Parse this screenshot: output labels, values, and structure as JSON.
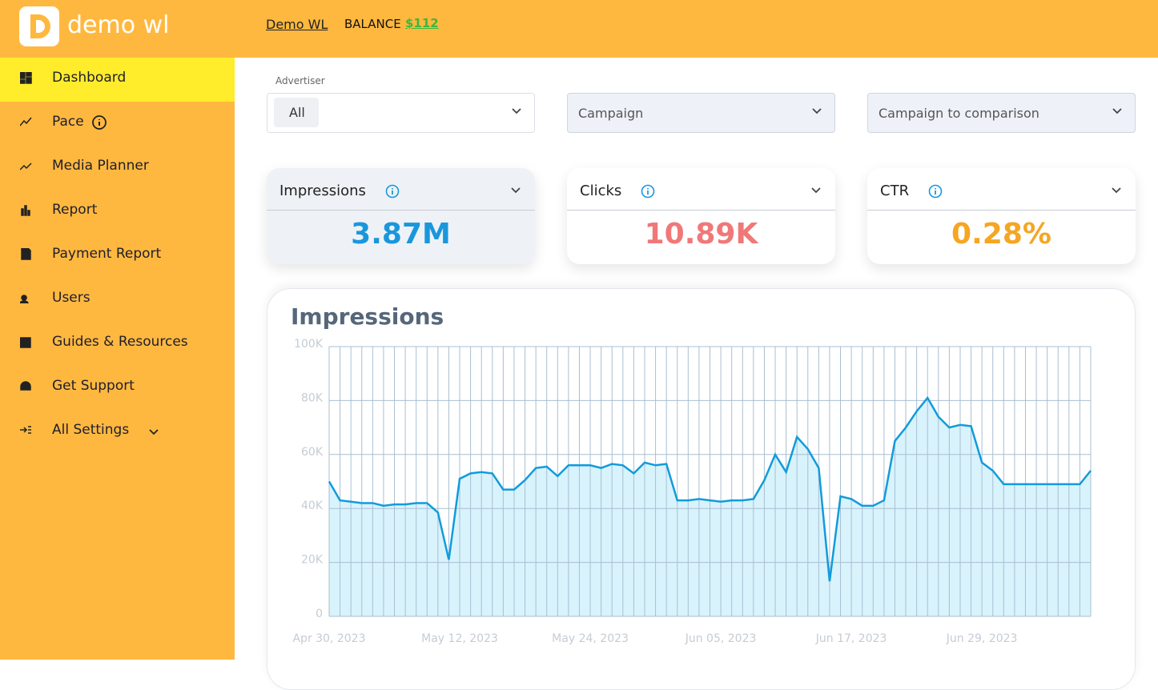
{
  "header": {
    "brand": "demo wl",
    "account": "Demo WL",
    "balance_label": "BALANCE",
    "balance": "$112"
  },
  "sidebar": {
    "items": [
      "Dashboard",
      "Pace",
      "Media Planner",
      "Report",
      "Payment Report",
      "Users",
      "Guides & Resources",
      "Get Support",
      "All Settings"
    ],
    "active": 0
  },
  "filters": {
    "advertiser_label": "Advertiser",
    "advertiser_value": "All",
    "campaign": "Campaign",
    "comparison": "Campaign to comparison"
  },
  "kpis": [
    {
      "name": "Impressions",
      "value": "3.87M",
      "color": "#1a97dc"
    },
    {
      "name": "Clicks",
      "value": "10.89K",
      "color": "#f07878"
    },
    {
      "name": "CTR",
      "value": "0.28%",
      "color": "#f5a623"
    }
  ],
  "chart_data": {
    "type": "area",
    "title": "Impressions",
    "color": "#129bdc",
    "fill": "#d8f3fc",
    "grid": true,
    "x": [
      "2023-04-30",
      "2023-05-01",
      "2023-05-02",
      "2023-05-03",
      "2023-05-04",
      "2023-05-05",
      "2023-05-06",
      "2023-05-07",
      "2023-05-08",
      "2023-05-09",
      "2023-05-10",
      "2023-05-11",
      "2023-05-12",
      "2023-05-13",
      "2023-05-14",
      "2023-05-15",
      "2023-05-16",
      "2023-05-17",
      "2023-05-18",
      "2023-05-19",
      "2023-05-20",
      "2023-05-21",
      "2023-05-22",
      "2023-05-23",
      "2023-05-24",
      "2023-05-25",
      "2023-05-26",
      "2023-05-27",
      "2023-05-28",
      "2023-05-29",
      "2023-05-30",
      "2023-05-31",
      "2023-06-01",
      "2023-06-02",
      "2023-06-03",
      "2023-06-04",
      "2023-06-05",
      "2023-06-06",
      "2023-06-07",
      "2023-06-08",
      "2023-06-09",
      "2023-06-10",
      "2023-06-11",
      "2023-06-12",
      "2023-06-13",
      "2023-06-14",
      "2023-06-15",
      "2023-06-16",
      "2023-06-17",
      "2023-06-18",
      "2023-06-19",
      "2023-06-20",
      "2023-06-21",
      "2023-06-22",
      "2023-06-23",
      "2023-06-24",
      "2023-06-25",
      "2023-06-26",
      "2023-06-27",
      "2023-06-28",
      "2023-06-29",
      "2023-06-30",
      "2023-07-01",
      "2023-07-02",
      "2023-07-03",
      "2023-07-04",
      "2023-07-05",
      "2023-07-06",
      "2023-07-07",
      "2023-07-08",
      "2023-07-09"
    ],
    "values": [
      50000,
      43000,
      42500,
      42000,
      42000,
      41000,
      41500,
      41500,
      42000,
      42000,
      38500,
      21000,
      51000,
      53000,
      53500,
      53000,
      47000,
      47000,
      50500,
      55000,
      55500,
      52000,
      56000,
      56000,
      56000,
      55000,
      56500,
      56000,
      53000,
      57000,
      56000,
      56500,
      43000,
      43000,
      43500,
      43000,
      42500,
      43000,
      43000,
      43500,
      50500,
      60000,
      53500,
      66500,
      62000,
      55000,
      13000,
      44500,
      43500,
      41000,
      41000,
      43000,
      65000,
      70000,
      76000,
      81000,
      74000,
      70000,
      71000,
      70500,
      57000,
      54000,
      49000,
      49000,
      49000,
      49000,
      49000,
      49000,
      49000,
      49000,
      54000
    ],
    "xlim": [
      "2023-04-30",
      "2023-07-09"
    ],
    "xticks": [
      {
        "value": "2023-04-30",
        "label": "Apr 30, 2023"
      },
      {
        "value": "2023-05-12",
        "label": "May 12, 2023"
      },
      {
        "value": "2023-05-24",
        "label": "May 24, 2023"
      },
      {
        "value": "2023-06-05",
        "label": "Jun 05, 2023"
      },
      {
        "value": "2023-06-17",
        "label": "Jun 17, 2023"
      },
      {
        "value": "2023-06-29",
        "label": "Jun 29, 2023"
      }
    ],
    "ylim": [
      0,
      100000
    ],
    "yticks": [
      0,
      {
        "value": 20000,
        "label": "20K"
      },
      {
        "value": 40000,
        "label": "40K"
      },
      {
        "value": 60000,
        "label": "60K"
      },
      {
        "value": 80000,
        "label": "80K"
      },
      {
        "value": 100000,
        "label": "100K"
      }
    ]
  }
}
